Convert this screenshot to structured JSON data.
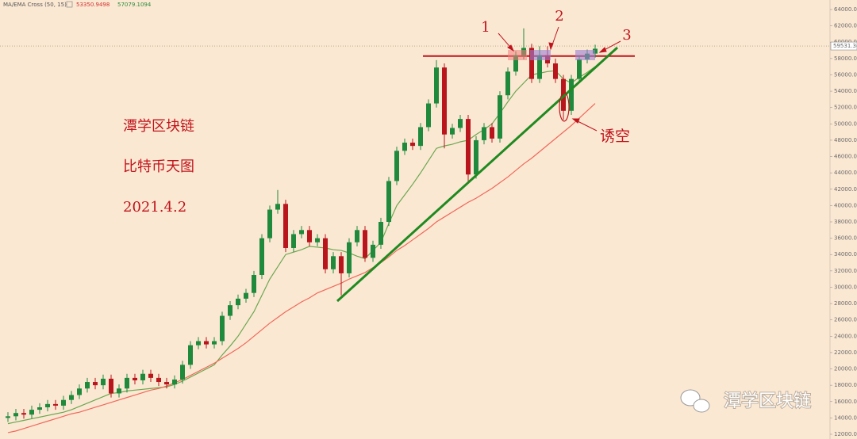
{
  "chart_data": {
    "type": "candlestick",
    "header": {
      "indicator": "MA/EMA Cross (50, 15)",
      "ma_value": "53350.9498",
      "ema_value": "57079.1094"
    },
    "up_color": "#1f8a3c",
    "down_color": "#b8161c",
    "open": [
      14000,
      14200,
      14600,
      14400,
      15000,
      15300,
      15700,
      15500,
      16200,
      16800,
      17600,
      18400,
      18000,
      18800,
      17000,
      17600,
      18900,
      18600,
      19400,
      18900,
      18400,
      18100,
      18700,
      20500,
      22900,
      23400,
      23000,
      23400,
      26500,
      27800,
      28600,
      29300,
      31500,
      36000,
      39500,
      40200,
      34800,
      36500,
      37000,
      35500,
      36000,
      32200,
      33800,
      31700,
      35500,
      37000,
      33600,
      35200,
      38000,
      43000,
      46700,
      47700,
      47300,
      49600,
      52500,
      56900,
      48700,
      49500,
      50600,
      43800,
      48000,
      49600,
      48200,
      53500,
      56400,
      58400,
      59300,
      55500,
      58400,
      57400,
      55500,
      51600,
      55500,
      57900,
      58600
    ],
    "high": [
      14700,
      15100,
      15100,
      15500,
      15800,
      16200,
      16200,
      16700,
      17300,
      18100,
      18900,
      18900,
      19300,
      19300,
      18100,
      19400,
      19400,
      19900,
      19900,
      19400,
      18900,
      19200,
      21000,
      23400,
      23900,
      23900,
      23900,
      27000,
      28300,
      29100,
      29800,
      32000,
      36500,
      40000,
      41900,
      40700,
      37000,
      37500,
      37500,
      36500,
      36500,
      34300,
      34300,
      36000,
      37500,
      37500,
      35700,
      38500,
      43500,
      47200,
      48200,
      48200,
      50100,
      53000,
      57800,
      57400,
      50000,
      51100,
      51100,
      48500,
      50100,
      50100,
      54000,
      56900,
      58900,
      61700,
      59800,
      59500,
      59500,
      58000,
      56000,
      56000,
      58400,
      59100,
      59700
    ],
    "low": [
      13500,
      13700,
      13900,
      13900,
      14500,
      14800,
      15000,
      15000,
      15700,
      16300,
      17100,
      17500,
      17500,
      16500,
      16500,
      17100,
      18100,
      18100,
      18400,
      17900,
      17600,
      17600,
      18200,
      20000,
      22400,
      22500,
      22500,
      22900,
      26000,
      27300,
      28100,
      28800,
      31000,
      35500,
      39000,
      34300,
      34300,
      36000,
      35000,
      35000,
      31700,
      31700,
      29000,
      31200,
      35000,
      33100,
      33100,
      34700,
      37500,
      42500,
      46200,
      46800,
      46800,
      49100,
      52000,
      47000,
      48200,
      49000,
      43000,
      43300,
      47500,
      47700,
      47700,
      53000,
      55900,
      57900,
      55000,
      55000,
      56900,
      55000,
      50500,
      51100,
      55000,
      57400,
      58100
    ],
    "close": [
      14200,
      14600,
      14400,
      15000,
      15300,
      15700,
      15500,
      16200,
      16800,
      17600,
      18400,
      18000,
      18800,
      17000,
      17600,
      18900,
      18600,
      19400,
      18900,
      18400,
      18100,
      18700,
      20500,
      22900,
      23400,
      23000,
      23400,
      26500,
      27800,
      28600,
      29300,
      31500,
      36000,
      39500,
      40200,
      34800,
      36500,
      37000,
      35500,
      36000,
      32200,
      33800,
      31700,
      35500,
      37000,
      33600,
      35200,
      38000,
      43000,
      46700,
      47700,
      47300,
      49600,
      52500,
      56900,
      48700,
      49500,
      50600,
      43800,
      48000,
      49600,
      48200,
      53500,
      56400,
      58400,
      59300,
      55500,
      58400,
      57400,
      55500,
      51600,
      55500,
      57900,
      58600,
      59200
    ],
    "overlays": [
      {
        "color": "#6aa84f",
        "values": [
          13300,
          13500,
          13700,
          13900,
          14100,
          14300,
          14500,
          14700,
          15000,
          15400,
          15800,
          16200,
          16600,
          17000,
          17100,
          17300,
          17400,
          17500,
          17600,
          17700,
          17800,
          18100,
          18500,
          19000,
          19500,
          20000,
          20500,
          21700,
          22800,
          24000,
          25500,
          27000,
          29000,
          31000,
          32500,
          34000,
          34300,
          34600,
          35000,
          34900,
          34800,
          34600,
          34500,
          34200,
          33800,
          33500,
          34500,
          35500,
          37800,
          40000,
          41300,
          42600,
          44000,
          45500,
          47000,
          47300,
          47500,
          47800,
          48000,
          48700,
          49300,
          50000,
          51300,
          52700,
          54000,
          55000,
          56000,
          56200,
          56400,
          56500,
          55500,
          55000,
          55700,
          56300,
          57000
        ]
      },
      {
        "color": "#f0685a",
        "values": [
          12200,
          12400,
          12700,
          13000,
          13300,
          13600,
          13900,
          14200,
          14500,
          14700,
          15000,
          15300,
          15600,
          15900,
          16200,
          16500,
          16800,
          17100,
          17400,
          17600,
          17900,
          18300,
          18700,
          19200,
          19700,
          20200,
          20700,
          21300,
          21900,
          22500,
          23200,
          24000,
          24800,
          25600,
          26300,
          27000,
          27600,
          28200,
          28700,
          29300,
          29700,
          30100,
          30500,
          31000,
          31400,
          31800,
          32400,
          33000,
          33700,
          34500,
          35100,
          35800,
          36500,
          37200,
          38000,
          38600,
          39200,
          39800,
          40400,
          40900,
          41500,
          42100,
          42800,
          43500,
          44300,
          45100,
          45800,
          46600,
          47400,
          48200,
          49000,
          49800,
          50700,
          51600,
          52500
        ]
      }
    ],
    "ylim": [
      12000,
      64000
    ],
    "yticks": [
      {
        "value": 12000,
        "label": "12000.00"
      },
      {
        "value": 14000,
        "label": "14000.00"
      },
      {
        "value": 16000,
        "label": "16000.00"
      },
      {
        "value": 18000,
        "label": "18000.00"
      },
      {
        "value": 20000,
        "label": "20000.00"
      },
      {
        "value": 22000,
        "label": "22000.00"
      },
      {
        "value": 24000,
        "label": "24000.00"
      },
      {
        "value": 26000,
        "label": "26000.00"
      },
      {
        "value": 28000,
        "label": "28000.00"
      },
      {
        "value": 30000,
        "label": "30000.00"
      },
      {
        "value": 32000,
        "label": "32000.00"
      },
      {
        "value": 34000,
        "label": "34000.00"
      },
      {
        "value": 36000,
        "label": "36000.00"
      },
      {
        "value": 38000,
        "label": "38000.00"
      },
      {
        "value": 40000,
        "label": "40000.00"
      },
      {
        "value": 42000,
        "label": "42000.00"
      },
      {
        "value": 44000,
        "label": "44000.00"
      },
      {
        "value": 46000,
        "label": "46000.00"
      },
      {
        "value": 48000,
        "label": "48000.00"
      },
      {
        "value": 50000,
        "label": "50000.00"
      },
      {
        "value": 52000,
        "label": "52000.00"
      },
      {
        "value": 54000,
        "label": "54000.00"
      },
      {
        "value": 56000,
        "label": "56000.00"
      },
      {
        "value": 58000,
        "label": "58000.00"
      },
      {
        "value": 60000,
        "label": "60000.00"
      },
      {
        "value": 62000,
        "label": "62000.00"
      },
      {
        "value": 64000,
        "label": "64000.00"
      }
    ],
    "last_price": {
      "value": 59531.34,
      "label": "59531.34"
    },
    "resistance": 58300,
    "annotations": {
      "markers": [
        "1",
        "2",
        "3"
      ],
      "note": "诱空",
      "title_lines": [
        "潭学区块链",
        "比特币天图",
        "2021.4.2"
      ],
      "watermark": "潭学区块链"
    }
  }
}
